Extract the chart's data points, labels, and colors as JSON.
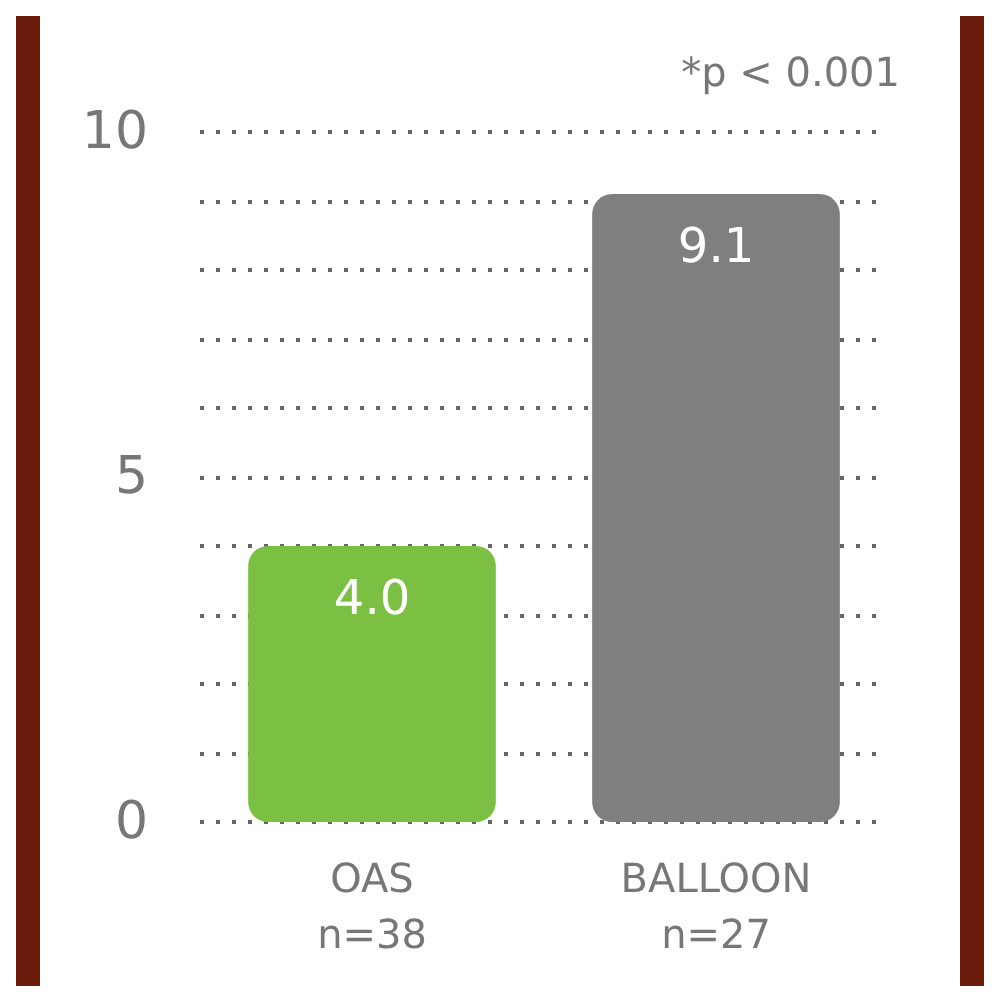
{
  "chart_data": {
    "type": "bar",
    "categories": [
      "OAS\nn=38",
      "BALLOON\nn=27"
    ],
    "values": [
      4.0,
      9.1
    ],
    "colors": [
      "#7bc043",
      "#7f7f7f"
    ],
    "value_labels": [
      "4.0",
      "9.1"
    ],
    "ylim": [
      0,
      10
    ],
    "yticks": [
      0,
      {
        "value": 1,
        "label": null
      },
      {
        "value": 2,
        "label": null
      },
      {
        "value": 3,
        "label": null
      },
      {
        "value": 4,
        "label": null
      },
      5,
      {
        "value": 6,
        "label": null
      },
      {
        "value": 7,
        "label": null
      },
      {
        "value": 8,
        "label": null
      },
      {
        "value": 9,
        "label": null
      },
      10
    ],
    "grid": "y",
    "annotations": [
      "*p < 0.001"
    ]
  }
}
